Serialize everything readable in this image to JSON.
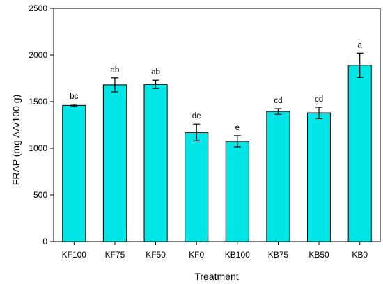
{
  "chart_data": {
    "type": "bar",
    "xlabel": "Treatment",
    "ylabel": "FRAP (mg AA/100 g)",
    "ylim": [
      0,
      2500
    ],
    "yticks": [
      0,
      500,
      1000,
      1500,
      2000,
      2500
    ],
    "categories": [
      "KF100",
      "KF75",
      "KF50",
      "KF0",
      "KB100",
      "KB75",
      "KB50",
      "KB0"
    ],
    "values": [
      1460,
      1680,
      1685,
      1170,
      1075,
      1395,
      1380,
      1890
    ],
    "errors": [
      12,
      75,
      45,
      90,
      60,
      30,
      60,
      130
    ],
    "significance_labels": [
      "bc",
      "ab",
      "ab",
      "de",
      "e",
      "cd",
      "cd",
      "a"
    ],
    "bar_color": "#00e6e6",
    "grid": false,
    "legend": "none"
  }
}
